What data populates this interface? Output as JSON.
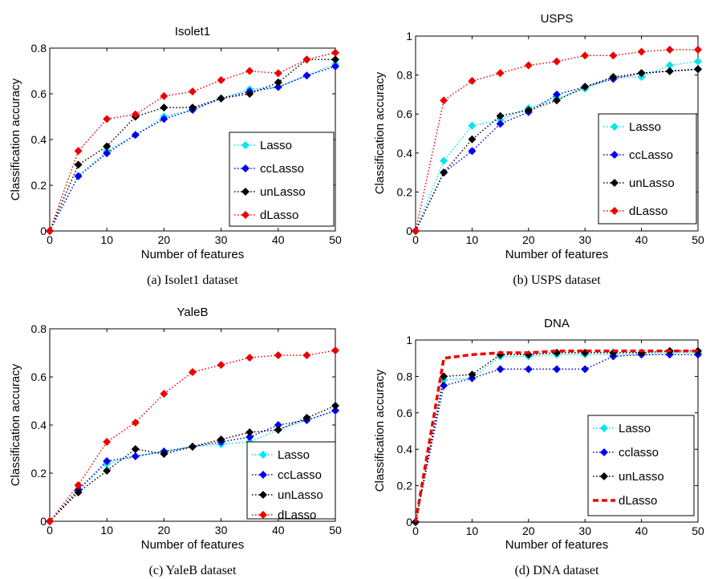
{
  "colors": {
    "Lasso": "#00e5ee",
    "ccLasso": "#0000ee",
    "unLasso": "#000000",
    "dLasso": "#ee0000"
  },
  "chart_data": [
    {
      "type": "line",
      "title": "Isolet1",
      "caption": "(a)  Isolet1 dataset",
      "xlabel": "Number of features",
      "ylabel": "Classification accuracy",
      "xlim": [
        0,
        50
      ],
      "ylim": [
        0,
        0.8
      ],
      "xticks": [
        0,
        10,
        20,
        30,
        40,
        50
      ],
      "yticks": [
        0,
        0.2,
        0.4,
        0.6,
        0.8
      ],
      "yticklabels": [
        "0",
        "0.2",
        "0.4",
        "0.6",
        "0.8"
      ],
      "legend_placement": "lower-right",
      "x": [
        0,
        5,
        10,
        15,
        20,
        25,
        30,
        35,
        40,
        45,
        50
      ],
      "series": [
        {
          "name": "Lasso",
          "values": [
            0,
            0.24,
            0.35,
            0.42,
            0.5,
            0.53,
            0.58,
            0.62,
            0.63,
            0.68,
            0.73
          ]
        },
        {
          "name": "ccLasso",
          "values": [
            0,
            0.24,
            0.34,
            0.42,
            0.49,
            0.53,
            0.58,
            0.61,
            0.63,
            0.68,
            0.72
          ]
        },
        {
          "name": "unLasso",
          "values": [
            0,
            0.29,
            0.37,
            0.5,
            0.54,
            0.54,
            0.58,
            0.6,
            0.65,
            0.75,
            0.75
          ]
        },
        {
          "name": "dLasso",
          "values": [
            0,
            0.35,
            0.49,
            0.51,
            0.59,
            0.61,
            0.66,
            0.7,
            0.69,
            0.75,
            0.78
          ]
        }
      ]
    },
    {
      "type": "line",
      "title": "USPS",
      "caption": "(b)  USPS dataset",
      "xlabel": "Number of features",
      "ylabel": "Classification accuracy",
      "xlim": [
        0,
        50
      ],
      "ylim": [
        0,
        1
      ],
      "xticks": [
        0,
        10,
        20,
        30,
        40,
        50
      ],
      "yticks": [
        0,
        0.2,
        0.4,
        0.6,
        0.8,
        1
      ],
      "yticklabels": [
        "0",
        "0.2",
        "0.4",
        "0.6",
        "0.8",
        "1"
      ],
      "legend_placement": "lower-right",
      "x": [
        0,
        5,
        10,
        15,
        20,
        25,
        30,
        35,
        40,
        45,
        50
      ],
      "series": [
        {
          "name": "Lasso",
          "values": [
            0,
            0.36,
            0.54,
            0.57,
            0.63,
            0.68,
            0.73,
            0.79,
            0.79,
            0.85,
            0.87
          ]
        },
        {
          "name": "ccLasso",
          "values": [
            0,
            0.3,
            0.41,
            0.55,
            0.61,
            0.7,
            0.74,
            0.78,
            0.81,
            0.82,
            0.83
          ]
        },
        {
          "name": "unLasso",
          "values": [
            0,
            0.3,
            0.47,
            0.59,
            0.62,
            0.67,
            0.74,
            0.79,
            0.81,
            0.82,
            0.83
          ]
        },
        {
          "name": "dLasso",
          "values": [
            0,
            0.67,
            0.77,
            0.81,
            0.85,
            0.87,
            0.9,
            0.9,
            0.92,
            0.93,
            0.93
          ]
        }
      ]
    },
    {
      "type": "line",
      "title": "YaleB",
      "caption": "(c)  YaleB dataset",
      "xlabel": "Number of features",
      "ylabel": "Classification accuracy",
      "xlim": [
        0,
        50
      ],
      "ylim": [
        0,
        0.8
      ],
      "xticks": [
        0,
        10,
        20,
        30,
        40,
        50
      ],
      "yticks": [
        0,
        0.2,
        0.4,
        0.6,
        0.8
      ],
      "yticklabels": [
        "0",
        "0.2",
        "0.4",
        "0.6",
        "0.8"
      ],
      "legend_placement": "lower-right",
      "x": [
        0,
        5,
        10,
        15,
        20,
        25,
        30,
        35,
        40,
        45,
        50
      ],
      "series": [
        {
          "name": "Lasso",
          "values": [
            0,
            0.13,
            0.24,
            0.27,
            0.29,
            0.31,
            0.32,
            0.33,
            0.38,
            0.42,
            0.46
          ]
        },
        {
          "name": "ccLasso",
          "values": [
            0,
            0.13,
            0.25,
            0.27,
            0.29,
            0.31,
            0.33,
            0.35,
            0.4,
            0.42,
            0.46
          ]
        },
        {
          "name": "unLasso",
          "values": [
            0,
            0.12,
            0.21,
            0.3,
            0.28,
            0.31,
            0.34,
            0.37,
            0.38,
            0.43,
            0.48
          ]
        },
        {
          "name": "dLasso",
          "values": [
            0,
            0.15,
            0.33,
            0.41,
            0.53,
            0.62,
            0.65,
            0.68,
            0.69,
            0.69,
            0.71
          ]
        }
      ]
    },
    {
      "type": "line",
      "title": "DNA",
      "caption": "(d)  DNA dataset",
      "xlabel": "Number of features",
      "ylabel": "Classification accuracy",
      "xlim": [
        0,
        50
      ],
      "ylim": [
        0,
        1
      ],
      "xticks": [
        0,
        10,
        20,
        30,
        40,
        50
      ],
      "yticks": [
        0,
        0.2,
        0.4,
        0.6,
        0.8,
        1
      ],
      "yticklabels": [
        "0",
        "0.2",
        "0.4",
        "0.6",
        "0.8",
        "1"
      ],
      "legend_placement": "lower-right",
      "x": [
        0,
        5,
        10,
        15,
        20,
        25,
        30,
        35,
        40,
        45,
        50
      ],
      "series": [
        {
          "name": "Lasso",
          "values": [
            0,
            0.78,
            0.79,
            0.91,
            0.91,
            0.92,
            0.92,
            0.92,
            0.92,
            0.93,
            0.93
          ]
        },
        {
          "name": "cclasso",
          "values": [
            0,
            0.75,
            0.79,
            0.84,
            0.84,
            0.84,
            0.84,
            0.91,
            0.92,
            0.92,
            0.92
          ]
        },
        {
          "name": "unLasso",
          "values": [
            0,
            0.8,
            0.81,
            0.92,
            0.92,
            0.93,
            0.93,
            0.93,
            0.93,
            0.94,
            0.94
          ]
        },
        {
          "name": "dLasso",
          "values": [
            0,
            0.9,
            0.92,
            0.93,
            0.93,
            0.94,
            0.94,
            0.94,
            0.94,
            0.94,
            0.94
          ]
        }
      ]
    }
  ]
}
